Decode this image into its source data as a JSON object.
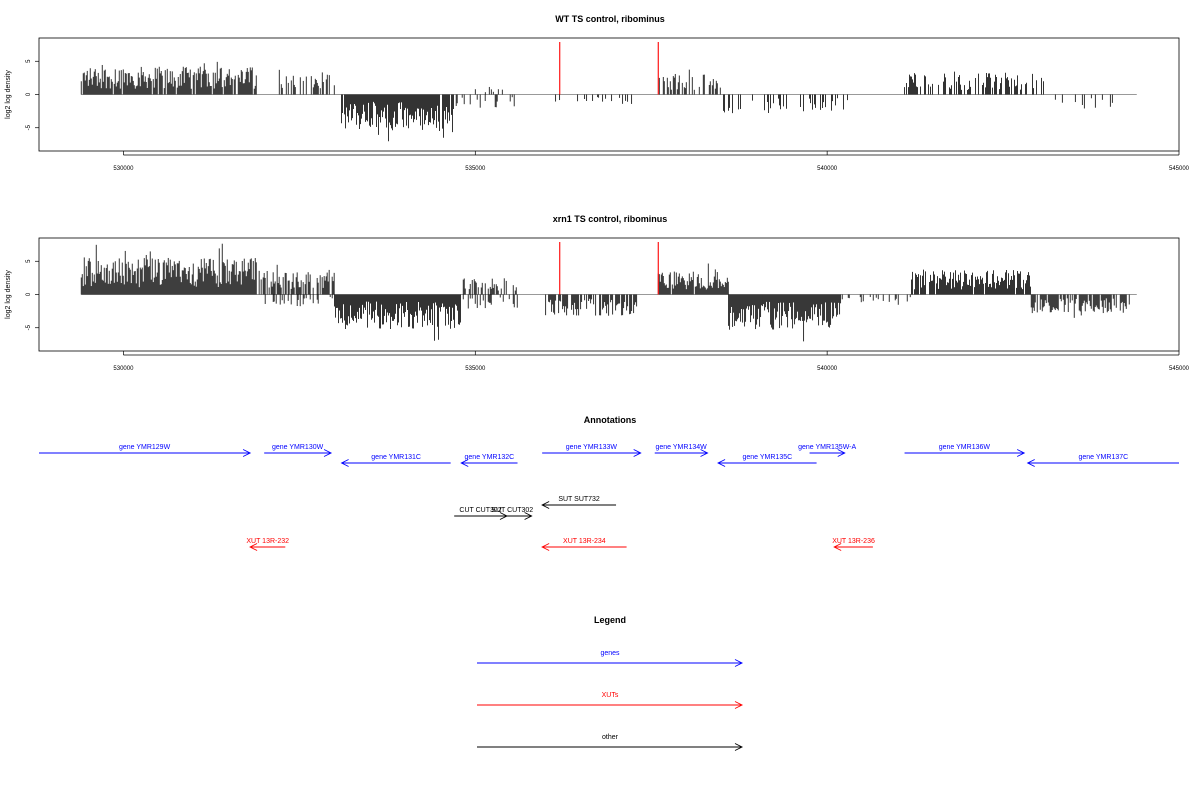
{
  "chart_data": [
    {
      "type": "bar",
      "title": "WT TS control, ribominus",
      "xlabel": "",
      "ylabel": "log2 log density",
      "xlim": [
        528800,
        545000
      ],
      "ylim": [
        -8.5,
        8.5
      ],
      "xticks": [
        530000,
        535000,
        540000,
        545000
      ],
      "yticks": [
        -5,
        0,
        5
      ],
      "baseline_range": [
        529400,
        544400
      ],
      "bar_color": "#000000",
      "marker_color": "#ff0000",
      "markers": [
        536200,
        537600
      ],
      "segments": [
        {
          "from": 529400,
          "to": 531900,
          "sign": 1,
          "amp": 4.2,
          "density": 0.9
        },
        {
          "from": 532200,
          "to": 533000,
          "sign": 1,
          "amp": 3.0,
          "density": 0.5
        },
        {
          "from": 533100,
          "to": 534700,
          "sign": -1,
          "amp": 5.5,
          "density": 0.95
        },
        {
          "from": 534700,
          "to": 535600,
          "sign": -1,
          "amp": 2.0,
          "density": 0.25
        },
        {
          "from": 535000,
          "to": 535500,
          "sign": 1,
          "amp": 1.2,
          "density": 0.15
        },
        {
          "from": 535900,
          "to": 537400,
          "sign": -1,
          "amp": 1.5,
          "density": 0.12
        },
        {
          "from": 537600,
          "to": 538500,
          "sign": 1,
          "amp": 3.0,
          "density": 0.45
        },
        {
          "from": 538500,
          "to": 540300,
          "sign": -1,
          "amp": 2.8,
          "density": 0.3
        },
        {
          "from": 541100,
          "to": 543100,
          "sign": 1,
          "amp": 3.3,
          "density": 0.55
        },
        {
          "from": 543200,
          "to": 544200,
          "sign": -1,
          "amp": 2.5,
          "density": 0.15
        }
      ]
    },
    {
      "type": "bar",
      "title": "xrn1 TS control, ribominus",
      "xlabel": "",
      "ylabel": "log2 log density",
      "xlim": [
        528800,
        545000
      ],
      "ylim": [
        -8.5,
        8.5
      ],
      "xticks": [
        530000,
        535000,
        540000,
        545000
      ],
      "yticks": [
        -5,
        0,
        5
      ],
      "baseline_range": [
        529400,
        544400
      ],
      "bar_color": "#000000",
      "marker_color": "#ff0000",
      "markers": [
        536200,
        537600
      ],
      "segments": [
        {
          "from": 529400,
          "to": 531900,
          "sign": 1,
          "amp": 5.5,
          "density": 1.0
        },
        {
          "from": 531900,
          "to": 533000,
          "sign": 1,
          "amp": 3.6,
          "density": 0.7
        },
        {
          "from": 532000,
          "to": 533000,
          "sign": -1,
          "amp": 1.8,
          "density": 0.3
        },
        {
          "from": 533000,
          "to": 534800,
          "sign": -1,
          "amp": 5.2,
          "density": 1.0
        },
        {
          "from": 534800,
          "to": 535600,
          "sign": 1,
          "amp": 2.5,
          "density": 0.4
        },
        {
          "from": 534800,
          "to": 535600,
          "sign": -1,
          "amp": 2.2,
          "density": 0.35
        },
        {
          "from": 536000,
          "to": 537300,
          "sign": -1,
          "amp": 3.2,
          "density": 0.75
        },
        {
          "from": 537600,
          "to": 538600,
          "sign": 1,
          "amp": 3.5,
          "density": 0.95
        },
        {
          "from": 538600,
          "to": 540200,
          "sign": -1,
          "amp": 5.3,
          "density": 1.0
        },
        {
          "from": 540200,
          "to": 541200,
          "sign": -1,
          "amp": 1.2,
          "density": 0.2
        },
        {
          "from": 541200,
          "to": 542900,
          "sign": 1,
          "amp": 3.8,
          "density": 0.9
        },
        {
          "from": 542900,
          "to": 544300,
          "sign": -1,
          "amp": 2.8,
          "density": 0.8
        }
      ]
    }
  ],
  "annotations": {
    "title": "Annotations",
    "colors": {
      "gene": "#0000ff",
      "xut": "#ff0000",
      "other": "#000000"
    },
    "features": [
      {
        "label": "gene YMR129W",
        "kind": "gene",
        "from": 528800,
        "to": 531800,
        "row": 0,
        "strand": "+"
      },
      {
        "label": "gene YMR130W",
        "kind": "gene",
        "from": 532000,
        "to": 532950,
        "row": 0,
        "strand": "+"
      },
      {
        "label": "gene YMR131C",
        "kind": "gene",
        "from": 533100,
        "to": 534650,
        "row": 1,
        "strand": "-"
      },
      {
        "label": "gene YMR132C",
        "kind": "gene",
        "from": 534800,
        "to": 535600,
        "row": 1,
        "strand": "-"
      },
      {
        "label": "gene YMR133W",
        "kind": "gene",
        "from": 535950,
        "to": 537350,
        "row": 0,
        "strand": "+"
      },
      {
        "label": "gene YMR134W",
        "kind": "gene",
        "from": 537550,
        "to": 538300,
        "row": 0,
        "strand": "+"
      },
      {
        "label": "gene YMR135C",
        "kind": "gene",
        "from": 538450,
        "to": 539850,
        "row": 1,
        "strand": "-"
      },
      {
        "label": "gene YMR135W-A",
        "kind": "gene",
        "from": 539750,
        "to": 540250,
        "row": 0,
        "strand": "+"
      },
      {
        "label": "gene YMR136W",
        "kind": "gene",
        "from": 541100,
        "to": 542800,
        "row": 0,
        "strand": "+"
      },
      {
        "label": "gene YMR137C",
        "kind": "gene",
        "from": 542850,
        "to": 545000,
        "row": 1,
        "strand": "-"
      },
      {
        "label": "SUT SUT732",
        "kind": "other",
        "from": 535950,
        "to": 537000,
        "row": 2,
        "strand": "-"
      },
      {
        "label": "CUT CUT302",
        "kind": "other",
        "from": 534700,
        "to": 535450,
        "row": 3,
        "strand": "+"
      },
      {
        "label": "SUT CUT302",
        "kind": "other",
        "from": 535250,
        "to": 535800,
        "row": 3,
        "strand": "+"
      },
      {
        "label": "XUT 13R-232",
        "kind": "xut",
        "from": 531800,
        "to": 532300,
        "row": 4,
        "strand": "-"
      },
      {
        "label": "XUT 13R-234",
        "kind": "xut",
        "from": 535950,
        "to": 537150,
        "row": 4,
        "strand": "-"
      },
      {
        "label": "XUT 13R-236",
        "kind": "xut",
        "from": 540100,
        "to": 540650,
        "row": 4,
        "strand": "-"
      }
    ]
  },
  "legend": {
    "title": "Legend",
    "items": [
      {
        "label": "genes",
        "color": "#0000ff"
      },
      {
        "label": "XUTs",
        "color": "#ff0000"
      },
      {
        "label": "other",
        "color": "#000000"
      }
    ]
  }
}
